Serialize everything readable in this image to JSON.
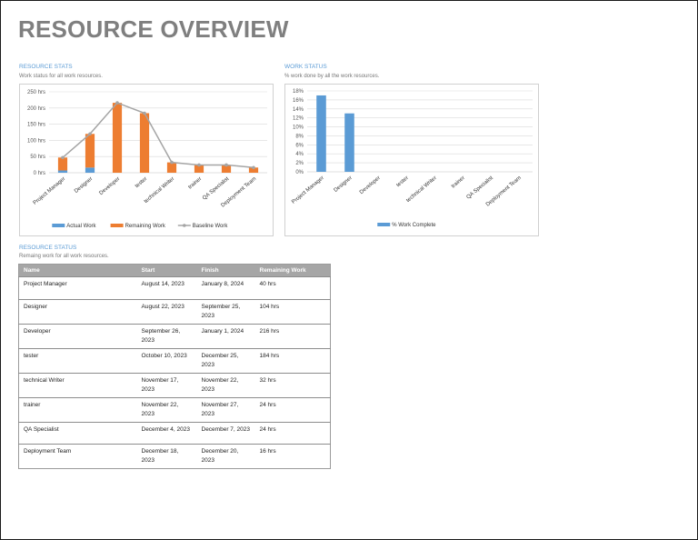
{
  "page": {
    "title": "RESOURCE OVERVIEW"
  },
  "sections": {
    "resource_stats": {
      "title": "RESOURCE STATS",
      "subtitle": "Work status for all work resources."
    },
    "work_status": {
      "title": "WORK STATUS",
      "subtitle": "% work done by all the work resources."
    },
    "resource_status": {
      "title": "RESOURCE STATUS",
      "subtitle": "Remaing work for all work resources."
    }
  },
  "chart_data": [
    {
      "type": "bar",
      "stacked": true,
      "categories": [
        "Project Manager",
        "Designer",
        "Developer",
        "tester",
        "technical Writer",
        "trainer",
        "QA Specialist",
        "Deployment Team"
      ],
      "series": [
        {
          "name": "Actual Work",
          "kind": "bar",
          "color": "#5b9bd5",
          "values": [
            7,
            16,
            0,
            0,
            0,
            0,
            0,
            0
          ]
        },
        {
          "name": "Remaining Work",
          "kind": "bar",
          "color": "#ed7d31",
          "values": [
            40,
            104,
            216,
            184,
            32,
            24,
            24,
            16
          ]
        },
        {
          "name": "Baseline Work",
          "kind": "line",
          "color": "#a5a5a5",
          "values": [
            47,
            120,
            216,
            184,
            32,
            24,
            24,
            16
          ]
        }
      ],
      "yticks": [
        "0 hrs",
        "50 hrs",
        "100 hrs",
        "150 hrs",
        "200 hrs",
        "250 hrs"
      ],
      "ylim": [
        0,
        250
      ],
      "grid": true,
      "legend": "bottom"
    },
    {
      "type": "bar",
      "categories": [
        "Project Manager",
        "Designer",
        "Developer",
        "tester",
        "technical Writer",
        "trainer",
        "QA Specialist",
        "Deployment Team"
      ],
      "series": [
        {
          "name": "% Work Complete",
          "color": "#5b9bd5",
          "values": [
            17,
            13,
            0,
            0,
            0,
            0,
            0,
            0
          ]
        }
      ],
      "yticks": [
        "0%",
        "2%",
        "4%",
        "6%",
        "8%",
        "10%",
        "12%",
        "14%",
        "16%",
        "18%"
      ],
      "ylim": [
        0,
        18
      ],
      "grid": true,
      "legend": "bottom"
    }
  ],
  "table": {
    "headers": [
      "Name",
      "Start",
      "Finish",
      "Remaining Work"
    ],
    "rows": [
      [
        "Project Manager",
        "August 14, 2023",
        "January 8, 2024",
        "40 hrs"
      ],
      [
        "Designer",
        "August 22, 2023",
        "September 25, 2023",
        "104 hrs"
      ],
      [
        "Developer",
        "September 26, 2023",
        "January 1, 2024",
        "216 hrs"
      ],
      [
        "tester",
        "October 10, 2023",
        "December 25, 2023",
        "184 hrs"
      ],
      [
        "technical Writer",
        "November 17, 2023",
        "November 22, 2023",
        "32 hrs"
      ],
      [
        "trainer",
        "November 22, 2023",
        "November 27, 2023",
        "24 hrs"
      ],
      [
        "QA Specialist",
        "December 4, 2023",
        "December 7, 2023",
        "24 hrs"
      ],
      [
        "Deployment Team",
        "December 18, 2023",
        "December 20, 2023",
        "16 hrs"
      ]
    ]
  }
}
